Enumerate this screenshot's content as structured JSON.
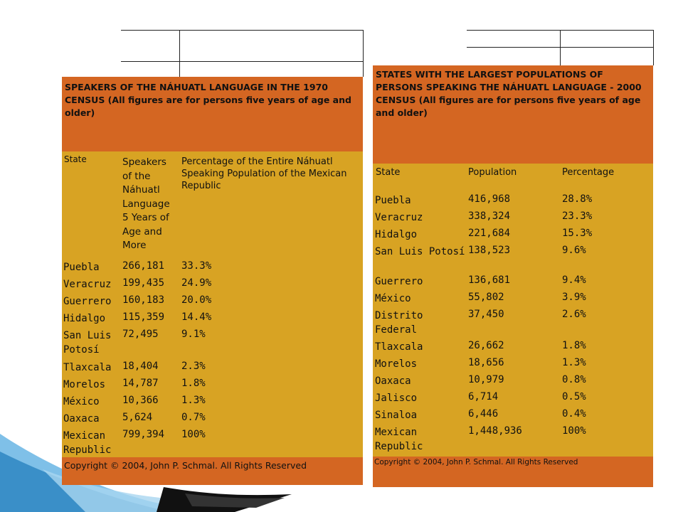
{
  "table1": {
    "title": "SPEAKERS OF THE NÁHUATL LANGUAGE IN THE 1970 CENSUS (All figures are for persons five years of age and older)",
    "col_state": "State",
    "col_speakers": "Speakers of the Náhuatl Language 5 Years of Age and More",
    "col_pct": "Percentage of the Entire Náhuatl Speaking Population of the Mexican Republic",
    "rows": [
      {
        "state": "Puebla",
        "value": "266,181",
        "pct": "33.3%"
      },
      {
        "state": "Veracruz",
        "value": "199,435",
        "pct": "24.9%"
      },
      {
        "state": "Guerrero",
        "value": "160,183",
        "pct": "20.0%"
      },
      {
        "state": "Hidalgo",
        "value": "115,359",
        "pct": "14.4%"
      },
      {
        "state": "San Luis Potosí",
        "value": "72,495",
        "pct": "9.1%"
      },
      {
        "state": "Tlaxcala",
        "value": "18,404",
        "pct": "2.3%"
      },
      {
        "state": "Morelos",
        "value": "14,787",
        "pct": "1.8%"
      },
      {
        "state": "México",
        "value": "10,366",
        "pct": "1.3%"
      },
      {
        "state": "Oaxaca",
        "value": "5,624",
        "pct": "0.7%"
      },
      {
        "state": "Mexican Republic",
        "value": "799,394",
        "pct": "100%"
      }
    ],
    "copyright": "Copyright © 2004, John P. Schmal. All Rights Reserved"
  },
  "table2": {
    "title": "STATES WITH THE LARGEST POPULATIONS OF PERSONS SPEAKING THE NÁHUATL LANGUAGE - 2000 CENSUS (All figures are for persons five years of age and older)",
    "col_state": "State",
    "col_population": "Population",
    "col_pct": "Percentage",
    "rows": [
      {
        "state": "Puebla",
        "value": "416,968",
        "pct": "28.8%"
      },
      {
        "state": "Veracruz",
        "value": "338,324",
        "pct": "23.3%"
      },
      {
        "state": "Hidalgo",
        "value": "221,684",
        "pct": "15.3%"
      },
      {
        "state": "San Luis Potosí",
        "value": "138,523",
        "pct": "9.6%"
      },
      {
        "state": "Guerrero",
        "value": "136,681",
        "pct": "9.4%"
      },
      {
        "state": "México",
        "value": "55,802",
        "pct": "3.9%"
      },
      {
        "state": "Distrito Federal",
        "value": "37,450",
        "pct": "2.6%"
      },
      {
        "state": "Tlaxcala",
        "value": "26,662",
        "pct": "1.8%"
      },
      {
        "state": "Morelos",
        "value": "18,656",
        "pct": "1.3%"
      },
      {
        "state": "Oaxaca",
        "value": "10,979",
        "pct": "0.8%"
      },
      {
        "state": "Jalisco",
        "value": "6,714",
        "pct": "0.5%"
      },
      {
        "state": "Sinaloa",
        "value": "6,446",
        "pct": "0.4%"
      },
      {
        "state": "Mexican Republic",
        "value": "1,448,936",
        "pct": "100%"
      }
    ],
    "copyright": "Copyright © 2004, John P. Schmal. All Rights Reserved"
  },
  "colors": {
    "orange": "#D46622",
    "gold": "#D8A323",
    "accent_blue": "#3A8FC8"
  }
}
